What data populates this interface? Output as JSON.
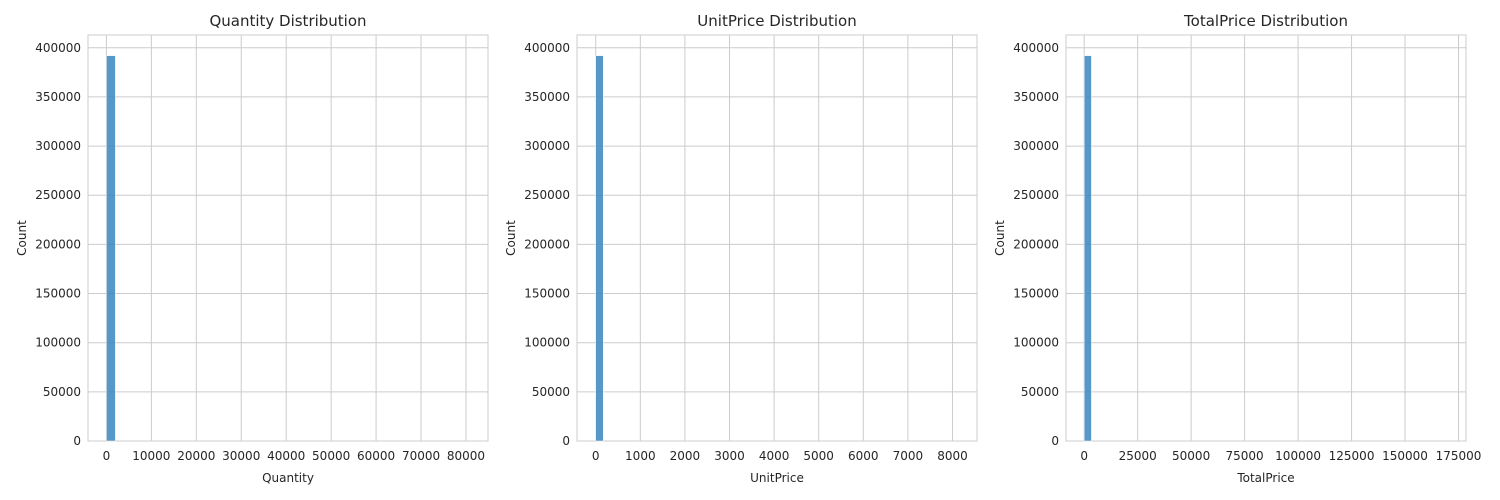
{
  "chart_data": [
    {
      "type": "bar",
      "title": "Quantity Distribution",
      "xlabel": "Quantity",
      "ylabel": "Count",
      "xlim": [
        -4100,
        84900
      ],
      "ylim": [
        0,
        413000
      ],
      "xticks": [
        0,
        10000,
        20000,
        30000,
        40000,
        50000,
        60000,
        70000,
        80000
      ],
      "yticks": [
        0,
        50000,
        100000,
        150000,
        200000,
        250000,
        300000,
        350000,
        400000
      ],
      "bins": [
        {
          "x0": 0,
          "x1": 2000,
          "count": 392000
        }
      ],
      "grid": true
    },
    {
      "type": "bar",
      "title": "UnitPrice Distribution",
      "xlabel": "UnitPrice",
      "ylabel": "Count",
      "xlim": [
        -420,
        8550
      ],
      "ylim": [
        0,
        413000
      ],
      "xticks": [
        0,
        1000,
        2000,
        3000,
        4000,
        5000,
        6000,
        7000,
        8000
      ],
      "yticks": [
        0,
        50000,
        100000,
        150000,
        200000,
        250000,
        300000,
        350000,
        400000
      ],
      "bins": [
        {
          "x0": 0,
          "x1": 170,
          "count": 392000
        }
      ],
      "grid": true
    },
    {
      "type": "bar",
      "title": "TotalPrice Distribution",
      "xlabel": "TotalPrice",
      "ylabel": "Count",
      "xlim": [
        -8500,
        178500
      ],
      "ylim": [
        0,
        413000
      ],
      "xticks": [
        0,
        25000,
        50000,
        75000,
        100000,
        125000,
        150000,
        175000
      ],
      "yticks": [
        0,
        50000,
        100000,
        150000,
        200000,
        250000,
        300000,
        350000,
        400000
      ],
      "bins": [
        {
          "x0": 0,
          "x1": 3400,
          "count": 392000
        }
      ],
      "grid": true
    }
  ]
}
